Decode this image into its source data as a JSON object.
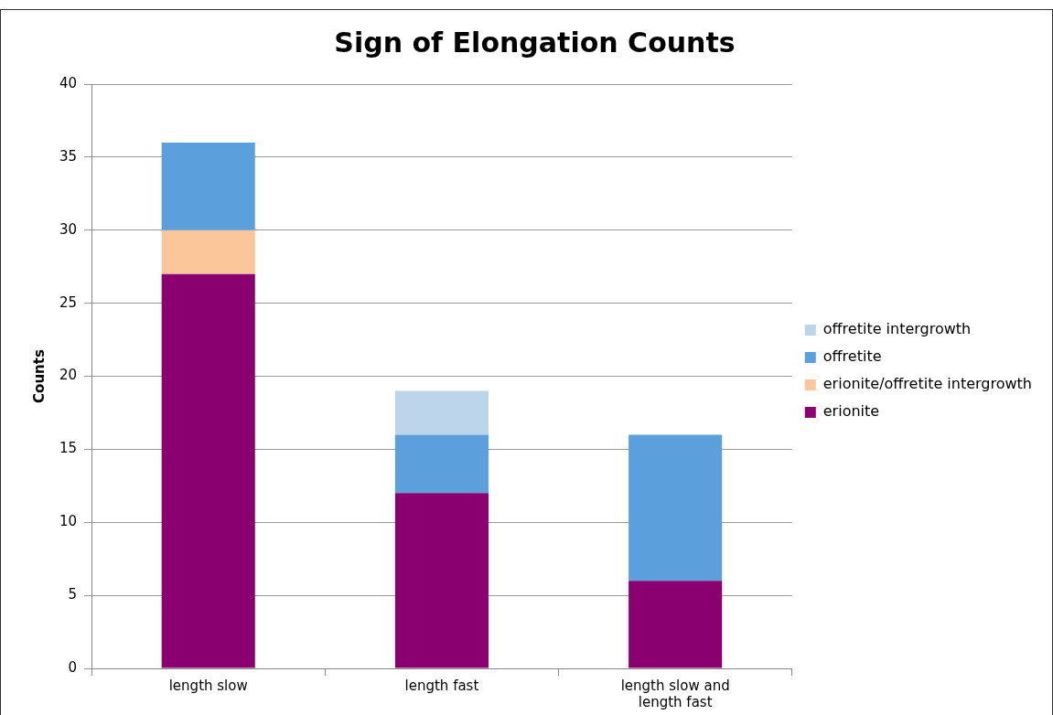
{
  "chart_data": {
    "type": "bar",
    "title": "Sign of Elongation Counts",
    "ylabel": "Counts",
    "categories": [
      "length slow",
      "length fast",
      "length slow and length fast"
    ],
    "stacked": true,
    "series": [
      {
        "name": "erionite",
        "color": "#8b0070",
        "values": [
          27,
          12,
          6
        ]
      },
      {
        "name": "erionite/offretite intergrowth",
        "color": "#fbc79a",
        "values": [
          3,
          0,
          0
        ]
      },
      {
        "name": "offretite",
        "color": "#5ba0dc",
        "values": [
          6,
          4,
          10
        ]
      },
      {
        "name": "offretite intergrowth",
        "color": "#bcd5ea",
        "values": [
          0,
          3,
          0
        ]
      }
    ],
    "ylim": [
      0,
      40
    ],
    "yticks": [
      0,
      5,
      10,
      15,
      20,
      25,
      30,
      35,
      40
    ],
    "grid": "y",
    "legend": "right"
  }
}
